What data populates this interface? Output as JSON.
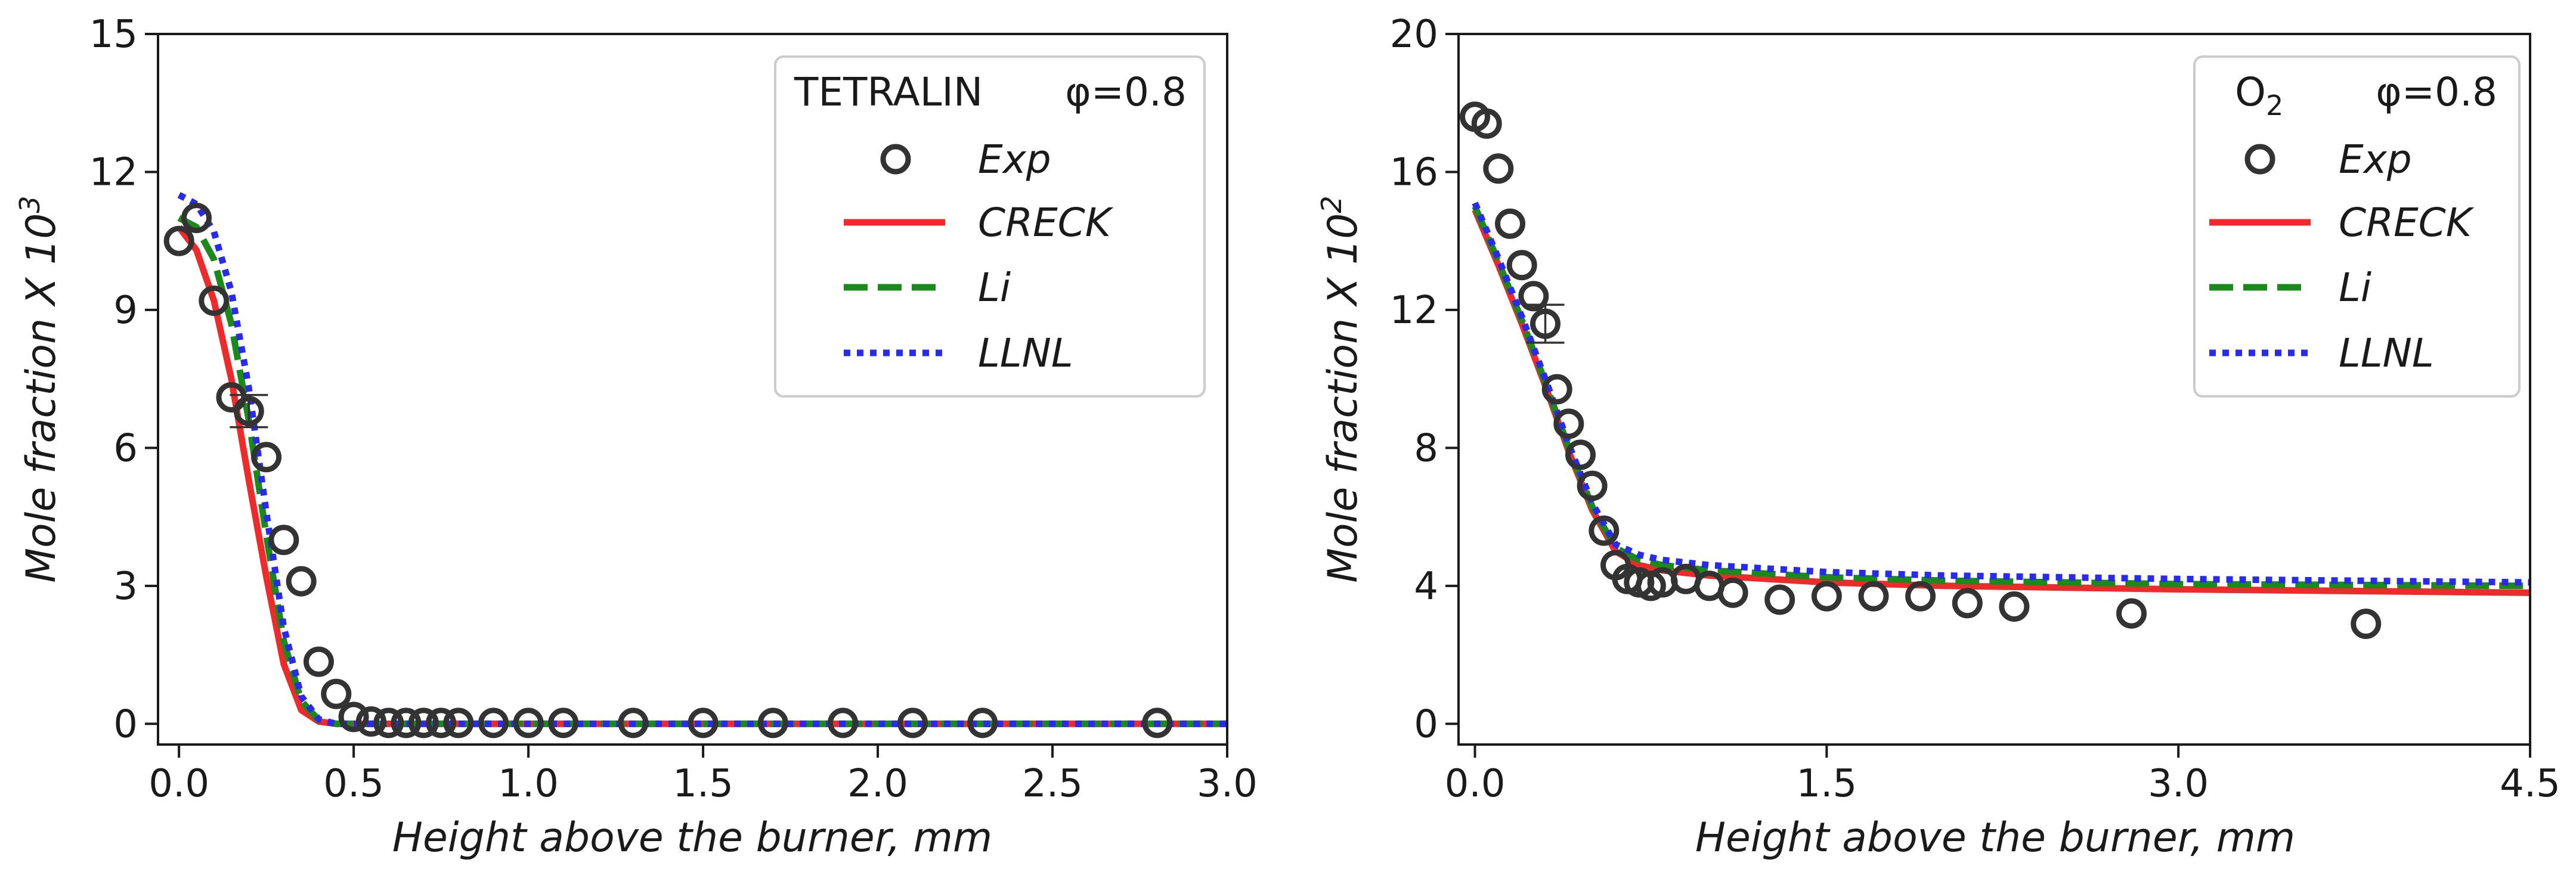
{
  "chart_data": [
    {
      "type": "line",
      "title": "",
      "xlabel": "Height above the burner, mm",
      "ylabel": "Mole fraction X 10",
      "ylabel_exponent": "3",
      "xlim": [
        -0.06,
        3.0
      ],
      "ylim": [
        -0.45,
        15
      ],
      "xticks": [
        0.0,
        0.5,
        1.0,
        1.5,
        2.0,
        2.5,
        3.0
      ],
      "xtick_labels": [
        "0.0",
        "0.5",
        "1.0",
        "1.5",
        "2.0",
        "2.5",
        "3.0"
      ],
      "yticks": [
        0,
        3,
        6,
        9,
        12,
        15
      ],
      "ytick_labels": [
        "0",
        "3",
        "6",
        "9",
        "12",
        "15"
      ],
      "legend": {
        "title": "TETRALIN",
        "title_sub": "",
        "title_suffix": "φ=0.8",
        "position": "top-right",
        "entries": [
          "Exp",
          "CRECK",
          "Li",
          "LLNL"
        ]
      },
      "exp": {
        "name": "Exp",
        "x": [
          0.0,
          0.05,
          0.1,
          0.15,
          0.2,
          0.25,
          0.3,
          0.35,
          0.4,
          0.45,
          0.5,
          0.55,
          0.6,
          0.65,
          0.7,
          0.75,
          0.8,
          0.9,
          1.0,
          1.1,
          1.3,
          1.5,
          1.7,
          1.9,
          2.1,
          2.3,
          2.8
        ],
        "y": [
          10.5,
          11.0,
          9.2,
          7.1,
          6.8,
          5.8,
          4.0,
          3.1,
          1.35,
          0.65,
          0.15,
          0.05,
          0.02,
          0.02,
          0.02,
          0.02,
          0.02,
          0.02,
          0.02,
          0.02,
          0.02,
          0.02,
          0.02,
          0.02,
          0.02,
          0.02,
          0.02
        ],
        "errorbars": [
          {
            "x": 0.2,
            "y": 6.8,
            "err": 0.35
          }
        ]
      },
      "series": [
        {
          "name": "CRECK",
          "color": "#ee2a2a",
          "dash": "solid",
          "x": [
            0.0,
            0.05,
            0.1,
            0.15,
            0.2,
            0.25,
            0.3,
            0.35,
            0.4,
            0.45,
            0.5,
            3.0
          ],
          "y": [
            10.8,
            10.3,
            9.2,
            7.5,
            5.3,
            3.2,
            1.3,
            0.3,
            0.05,
            0.0,
            0.0,
            0.0
          ]
        },
        {
          "name": "Li",
          "color": "#1a8a1a",
          "dash": "dashed",
          "x": [
            0.0,
            0.05,
            0.1,
            0.15,
            0.2,
            0.25,
            0.3,
            0.35,
            0.4,
            0.45,
            0.5,
            3.0
          ],
          "y": [
            11.0,
            10.8,
            10.1,
            8.7,
            6.6,
            4.1,
            1.8,
            0.5,
            0.08,
            0.0,
            0.0,
            0.0
          ]
        },
        {
          "name": "LLNL",
          "color": "#2a2aee",
          "dash": "dotted",
          "x": [
            0.0,
            0.05,
            0.1,
            0.15,
            0.2,
            0.25,
            0.3,
            0.35,
            0.4,
            0.45,
            0.5,
            3.0
          ],
          "y": [
            11.5,
            11.3,
            10.7,
            9.4,
            7.3,
            4.6,
            2.1,
            0.6,
            0.1,
            0.0,
            0.0,
            0.0
          ]
        }
      ]
    },
    {
      "type": "line",
      "title": "",
      "xlabel": "Height above the burner, mm",
      "ylabel": "Mole fraction X 10",
      "ylabel_exponent": "2",
      "xlim": [
        -0.07,
        4.5
      ],
      "ylim": [
        -0.6,
        20
      ],
      "xticks": [
        0.0,
        1.5,
        3.0,
        4.5
      ],
      "xtick_labels": [
        "0.0",
        "1.5",
        "3.0",
        "4.5"
      ],
      "yticks": [
        0,
        4,
        8,
        12,
        16,
        20
      ],
      "ytick_labels": [
        "0",
        "4",
        "8",
        "12",
        "16",
        "20"
      ],
      "legend": {
        "title": "O",
        "title_sub": "2",
        "title_suffix": "φ=0.8",
        "position": "top-right",
        "entries": [
          "Exp",
          "CRECK",
          "Li",
          "LLNL"
        ]
      },
      "exp": {
        "name": "Exp",
        "x": [
          0.0,
          0.05,
          0.1,
          0.15,
          0.2,
          0.25,
          0.3,
          0.35,
          0.4,
          0.45,
          0.5,
          0.55,
          0.6,
          0.65,
          0.7,
          0.75,
          0.8,
          0.9,
          1.0,
          1.1,
          1.3,
          1.5,
          1.7,
          1.9,
          2.1,
          2.3,
          2.8,
          3.8
        ],
        "y": [
          17.6,
          17.4,
          16.1,
          14.5,
          13.3,
          12.4,
          11.6,
          9.7,
          8.7,
          7.8,
          6.9,
          5.6,
          4.6,
          4.2,
          4.1,
          4.0,
          4.1,
          4.2,
          4.0,
          3.8,
          3.6,
          3.7,
          3.7,
          3.7,
          3.5,
          3.4,
          3.2,
          2.9
        ],
        "errorbars": [
          {
            "x": 0.3,
            "y": 11.6,
            "err": 0.55
          }
        ]
      },
      "series": [
        {
          "name": "CRECK",
          "color": "#ee2a2a",
          "dash": "solid",
          "x": [
            0.0,
            0.1,
            0.2,
            0.3,
            0.4,
            0.5,
            0.6,
            0.7,
            0.8,
            1.0,
            1.5,
            2.0,
            3.0,
            4.5
          ],
          "y": [
            14.9,
            13.3,
            11.6,
            9.8,
            7.9,
            6.2,
            5.0,
            4.6,
            4.45,
            4.3,
            4.1,
            4.0,
            3.9,
            3.8
          ]
        },
        {
          "name": "Li",
          "color": "#1a8a1a",
          "dash": "dashed",
          "x": [
            0.0,
            0.1,
            0.2,
            0.3,
            0.4,
            0.5,
            0.6,
            0.7,
            0.8,
            1.0,
            1.5,
            2.0,
            3.0,
            4.5
          ],
          "y": [
            15.0,
            13.4,
            11.7,
            9.9,
            8.0,
            6.3,
            5.1,
            4.75,
            4.6,
            4.45,
            4.25,
            4.15,
            4.05,
            4.0
          ]
        },
        {
          "name": "LLNL",
          "color": "#2a2aee",
          "dash": "dotted",
          "x": [
            0.0,
            0.1,
            0.2,
            0.3,
            0.4,
            0.5,
            0.6,
            0.7,
            0.8,
            1.0,
            1.5,
            2.0,
            3.0,
            4.5
          ],
          "y": [
            15.1,
            13.5,
            11.8,
            10.0,
            8.1,
            6.4,
            5.2,
            4.9,
            4.75,
            4.6,
            4.4,
            4.3,
            4.2,
            4.1
          ]
        }
      ]
    }
  ]
}
